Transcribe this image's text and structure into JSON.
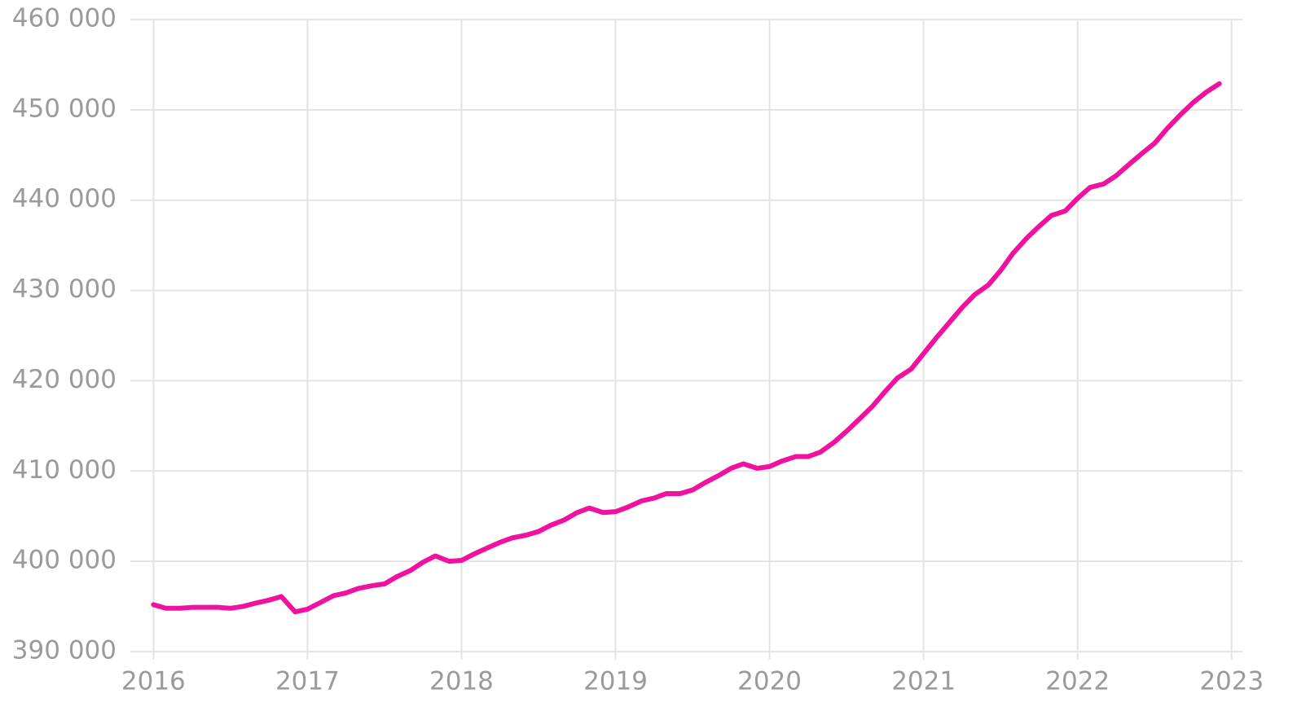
{
  "chart_data": {
    "type": "line",
    "x": [
      2016,
      2016.08,
      2016.17,
      2016.25,
      2016.33,
      2016.42,
      2016.5,
      2016.58,
      2016.67,
      2016.75,
      2016.83,
      2016.92,
      2017,
      2017.08,
      2017.17,
      2017.25,
      2017.33,
      2017.42,
      2017.5,
      2017.58,
      2017.67,
      2017.75,
      2017.83,
      2017.92,
      2018,
      2018.08,
      2018.17,
      2018.25,
      2018.33,
      2018.42,
      2018.5,
      2018.58,
      2018.67,
      2018.75,
      2018.83,
      2018.92,
      2019,
      2019.08,
      2019.17,
      2019.25,
      2019.33,
      2019.42,
      2019.5,
      2019.58,
      2019.67,
      2019.75,
      2019.83,
      2019.92,
      2020,
      2020.08,
      2020.17,
      2020.25,
      2020.33,
      2020.42,
      2020.5,
      2020.58,
      2020.67,
      2020.75,
      2020.83,
      2020.92,
      2021,
      2021.08,
      2021.17,
      2021.25,
      2021.33,
      2021.42,
      2021.5,
      2021.58,
      2021.67,
      2021.75,
      2021.83,
      2021.92,
      2022,
      2022.08,
      2022.17,
      2022.25,
      2022.33,
      2022.42,
      2022.5,
      2022.58,
      2022.67,
      2022.75,
      2022.83,
      2022.92
    ],
    "series": [
      {
        "color": "#f0129f",
        "values": [
          395200,
          394800,
          394800,
          394900,
          394900,
          394900,
          394800,
          395000,
          395400,
          395700,
          396100,
          394400,
          394700,
          395400,
          396200,
          396500,
          397000,
          397300,
          397500,
          398300,
          399000,
          399900,
          400600,
          400000,
          400100,
          400800,
          401500,
          402100,
          402600,
          402900,
          403300,
          404000,
          404600,
          405400,
          405900,
          405400,
          405500,
          406000,
          406700,
          407000,
          407500,
          407500,
          407900,
          408700,
          409500,
          410300,
          410800,
          410300,
          410500,
          411100,
          411600,
          411600,
          412100,
          413200,
          414400,
          415700,
          417200,
          418800,
          420300,
          421300,
          423000,
          424700,
          426500,
          428100,
          429500,
          430600,
          432200,
          434100,
          435800,
          437100,
          438300,
          438800,
          440200,
          441400,
          441800,
          442700,
          443900,
          445200,
          446300,
          447900,
          449500,
          450800,
          451900,
          452900
        ]
      }
    ],
    "xlim": [
      2015.85,
      2023.07
    ],
    "xticks": [
      2016,
      2017,
      2018,
      2019,
      2020,
      2021,
      2022,
      2023
    ],
    "ylim": [
      390000,
      460000
    ],
    "yticks": [
      {
        "value": 390000,
        "label": "390 000"
      },
      {
        "value": 400000,
        "label": "400 000"
      },
      {
        "value": 410000,
        "label": "410 000"
      },
      {
        "value": 420000,
        "label": "420 000"
      },
      {
        "value": 430000,
        "label": "430 000"
      },
      {
        "value": 440000,
        "label": "440 000"
      },
      {
        "value": 450000,
        "label": "450 000"
      },
      {
        "value": 460000,
        "label": "460 000"
      }
    ],
    "grid": true
  }
}
